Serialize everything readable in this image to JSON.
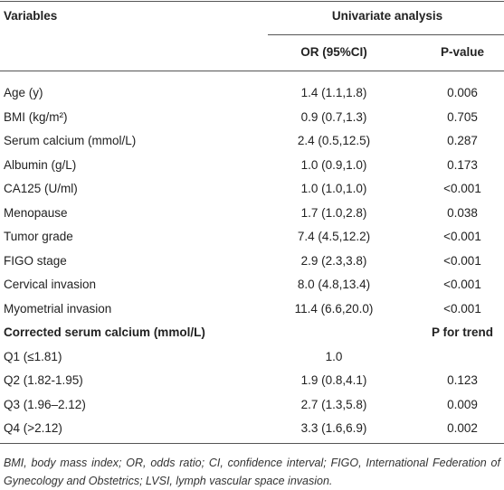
{
  "table": {
    "header": {
      "variables": "Variables",
      "group": "Univariate analysis",
      "col1": "OR (95%CI)",
      "col2": "P-value"
    },
    "rows": [
      [
        "Age (y)",
        "1.4 (1.1,1.8)",
        "0.006"
      ],
      [
        "BMI (kg/m²)",
        "0.9 (0.7,1.3)",
        "0.705"
      ],
      [
        "Serum calcium (mmol/L)",
        "2.4 (0.5,12.5)",
        "0.287"
      ],
      [
        "Albumin (g/L)",
        "1.0 (0.9,1.0)",
        "0.173"
      ],
      [
        "CA125 (U/ml)",
        "1.0 (1.0,1.0)",
        "<0.001"
      ],
      [
        "Menopause",
        "1.7 (1.0,2.8)",
        "0.038"
      ],
      [
        "Tumor grade",
        "7.4 (4.5,12.2)",
        "<0.001"
      ],
      [
        "FIGO stage",
        "2.9 (2.3,3.8)",
        "<0.001"
      ],
      [
        "Cervical invasion",
        "8.0 (4.8,13.4)",
        "<0.001"
      ],
      [
        "Myometrial invasion",
        "11.4 (6.6,20.0)",
        "<0.001"
      ]
    ],
    "section": {
      "label": "Corrected serum calcium (mmol/L)",
      "col2": "P for trend"
    },
    "quartiles": [
      [
        "Q1 (≤1.81)",
        "1.0"
      ],
      [
        "Q2 (1.82-1.95)",
        "1.9 (0.8,4.1)",
        "0.123"
      ],
      [
        "Q3 (1.96–2.12)",
        "2.7 (1.3,5.8)",
        "0.009"
      ],
      [
        "Q4 (>2.12)",
        "3.3 (1.6,6.9)",
        "0.002"
      ]
    ]
  },
  "footnote": "BMI, body mass index; OR, odds ratio; CI, confidence interval; FIGO, International Federation of Gynecology and Obstetrics; LVSI, lymph vascular space invasion."
}
